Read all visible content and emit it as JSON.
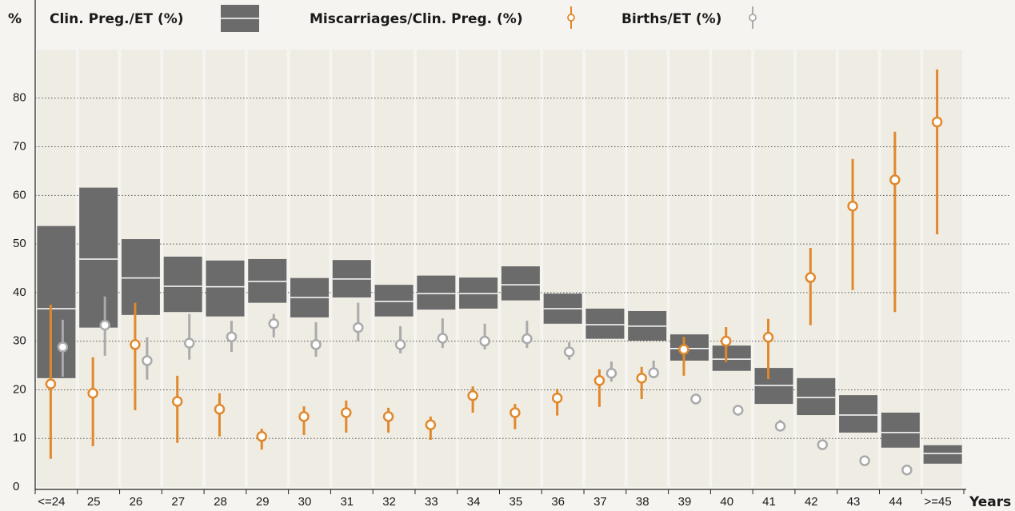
{
  "chart_data": {
    "type": "box",
    "y_label": "%",
    "x_label": "Years",
    "categories": [
      "<=24",
      "25",
      "26",
      "27",
      "28",
      "29",
      "30",
      "31",
      "32",
      "33",
      "34",
      "35",
      "36",
      "37",
      "38",
      "39",
      "40",
      "41",
      "42",
      "43",
      "44",
      ">=45"
    ],
    "ylim": [
      0,
      90
    ],
    "yticks": [
      0,
      10,
      20,
      30,
      40,
      50,
      60,
      70,
      80
    ],
    "grid": true,
    "series": [
      {
        "name": "Clin. Preg./ET (%)",
        "color": "#6b6b6b",
        "values": [
          36.7,
          46.9,
          43.0,
          41.3,
          41.2,
          42.3,
          39.0,
          42.8,
          38.2,
          39.8,
          39.8,
          41.6,
          36.7,
          33.4,
          33.1,
          28.5,
          26.3,
          20.9,
          18.4,
          14.8,
          11.2,
          6.9
        ],
        "low": [
          22.4,
          32.8,
          35.4,
          36.0,
          35.1,
          37.9,
          34.9,
          39.0,
          35.1,
          36.5,
          36.7,
          38.4,
          33.6,
          30.5,
          30.1,
          26.0,
          23.9,
          17.1,
          14.8,
          11.2,
          8.1,
          4.8
        ],
        "high": [
          53.7,
          61.6,
          51.0,
          47.4,
          46.6,
          46.9,
          43.0,
          46.7,
          41.6,
          43.5,
          43.1,
          45.4,
          39.8,
          36.7,
          36.2,
          31.4,
          29.1,
          24.5,
          22.4,
          18.9,
          15.3,
          8.6
        ]
      },
      {
        "name": "Miscarriages/Clin. Preg. (%)",
        "color": "#e0892c",
        "values": [
          21.2,
          19.3,
          29.3,
          17.6,
          16.0,
          10.4,
          14.5,
          15.3,
          14.5,
          12.8,
          18.8,
          15.3,
          18.3,
          21.9,
          22.4,
          28.3,
          30.0,
          30.8,
          43.1,
          57.8,
          63.2,
          75.1
        ],
        "low": [
          5.8,
          8.4,
          15.8,
          9.1,
          10.4,
          7.7,
          10.7,
          11.2,
          11.2,
          9.7,
          15.3,
          11.9,
          14.7,
          16.5,
          18.1,
          22.9,
          25.7,
          22.2,
          33.3,
          40.5,
          36.0,
          52.0
        ],
        "high": [
          37.5,
          26.7,
          37.9,
          22.9,
          19.3,
          12.0,
          16.6,
          17.8,
          16.3,
          14.5,
          20.7,
          17.1,
          20.2,
          24.2,
          24.7,
          30.9,
          32.9,
          34.6,
          49.2,
          67.5,
          73.1,
          85.9
        ]
      },
      {
        "name": "Births/ET (%)",
        "color": "#aaaaaa",
        "values": [
          28.8,
          33.3,
          26.0,
          29.6,
          30.9,
          33.6,
          29.3,
          32.8,
          29.3,
          30.6,
          30.0,
          30.5,
          27.8,
          23.4,
          23.5,
          18.1,
          15.8,
          12.5,
          8.7,
          5.4,
          3.5,
          null
        ],
        "low": [
          22.7,
          27.0,
          22.1,
          26.2,
          27.8,
          30.8,
          26.8,
          30.0,
          27.5,
          28.6,
          28.3,
          28.6,
          26.2,
          21.7,
          22.4,
          17.3,
          15.0,
          11.7,
          8.0,
          4.8,
          3.0,
          null
        ],
        "high": [
          34.4,
          39.2,
          30.8,
          35.6,
          34.2,
          35.6,
          33.9,
          37.9,
          33.1,
          34.7,
          33.6,
          34.2,
          29.8,
          25.8,
          26.0,
          19.0,
          16.6,
          13.8,
          9.4,
          6.0,
          4.0,
          null
        ]
      }
    ]
  }
}
